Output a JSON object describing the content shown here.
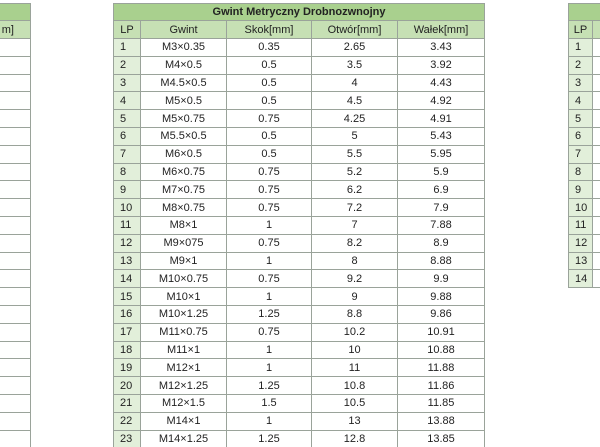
{
  "left": {
    "header": [
      "m]"
    ]
  },
  "center": {
    "title": "Gwint Metryczny Drobnozwnojny",
    "header": [
      "LP",
      "Gwint",
      "Skok[mm]",
      "Otwór[mm]",
      "Wałek[mm]"
    ],
    "rows": [
      [
        "1",
        "M3×0.35",
        "0.35",
        "2.65",
        "3.43"
      ],
      [
        "2",
        "M4×0.5",
        "0.5",
        "3.5",
        "3.92"
      ],
      [
        "3",
        "M4.5×0.5",
        "0.5",
        "4",
        "4.43"
      ],
      [
        "4",
        "M5×0.5",
        "0.5",
        "4.5",
        "4.92"
      ],
      [
        "5",
        "M5×0.75",
        "0.75",
        "4.25",
        "4.91"
      ],
      [
        "6",
        "M5.5×0.5",
        "0.5",
        "5",
        "5.43"
      ],
      [
        "7",
        "M6×0.5",
        "0.5",
        "5.5",
        "5.95"
      ],
      [
        "8",
        "M6×0.75",
        "0.75",
        "5.2",
        "5.9"
      ],
      [
        "9",
        "M7×0.75",
        "0.75",
        "6.2",
        "6.9"
      ],
      [
        "10",
        "M8×0.75",
        "0.75",
        "7.2",
        "7.9"
      ],
      [
        "11",
        "M8×1",
        "1",
        "7",
        "7.88"
      ],
      [
        "12",
        "M9×075",
        "0.75",
        "8.2",
        "8.9"
      ],
      [
        "13",
        "M9×1",
        "1",
        "8",
        "8.88"
      ],
      [
        "14",
        "M10×0.75",
        "0.75",
        "9.2",
        "9.9"
      ],
      [
        "15",
        "M10×1",
        "1",
        "9",
        "9.88"
      ],
      [
        "16",
        "M10×1.25",
        "1.25",
        "8.8",
        "9.86"
      ],
      [
        "17",
        "M11×0.75",
        "0.75",
        "10.2",
        "10.91"
      ],
      [
        "18",
        "M11×1",
        "1",
        "10",
        "10.88"
      ],
      [
        "19",
        "M12×1",
        "1",
        "11",
        "11.88"
      ],
      [
        "20",
        "M12×1.25",
        "1.25",
        "10.8",
        "11.86"
      ],
      [
        "21",
        "M12×1.5",
        "1.5",
        "10.5",
        "11.85"
      ],
      [
        "22",
        "M14×1",
        "1",
        "13",
        "13.88"
      ],
      [
        "23",
        "M14×1.25",
        "1.25",
        "12.8",
        "13.85"
      ]
    ]
  },
  "right": {
    "header": [
      "LP"
    ],
    "rows": [
      "1",
      "2",
      "3",
      "4",
      "5",
      "6",
      "7",
      "8",
      "9",
      "10",
      "11",
      "12",
      "13",
      "14"
    ]
  }
}
